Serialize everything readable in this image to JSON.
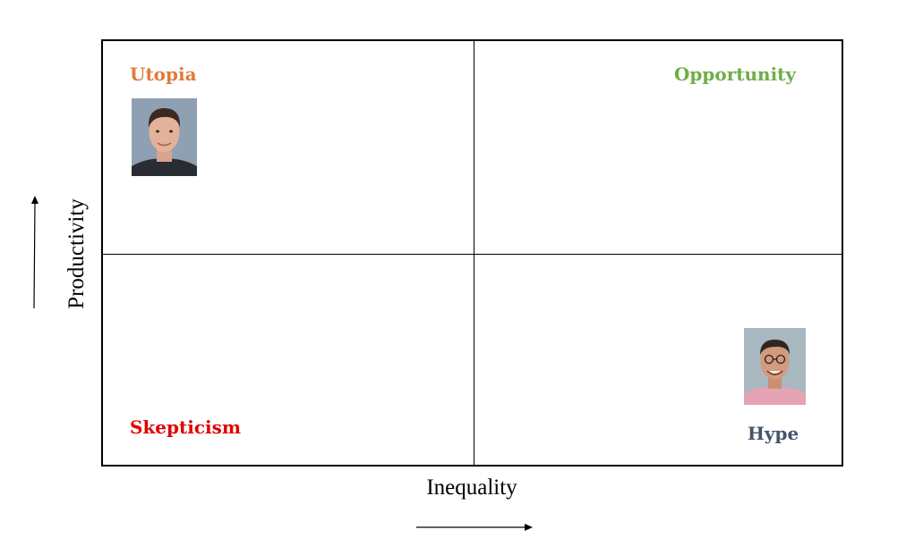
{
  "quadrants": {
    "top_left": {
      "label": "Utopia",
      "color": "#e07b39"
    },
    "top_right": {
      "label": "Opportunity",
      "color": "#70ad47"
    },
    "bottom_left": {
      "label": "Skepticism",
      "color": "#e00000"
    },
    "bottom_right": {
      "label": "Hype",
      "color": "#44546a"
    }
  },
  "axes": {
    "x_label": "Inequality",
    "y_label": "Productivity"
  },
  "photos": {
    "top_left": "person-photo-icon",
    "bottom_right": "person-photo-icon"
  }
}
